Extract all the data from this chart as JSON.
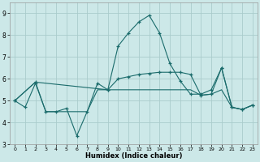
{
  "xlabel": "Humidex (Indice chaleur)",
  "bg_color": "#cce8e8",
  "grid_color": "#aacccc",
  "line_color": "#1a6b6b",
  "xlim": [
    -0.5,
    23.5
  ],
  "ylim": [
    3.0,
    9.5
  ],
  "yticks": [
    3,
    4,
    5,
    6,
    7,
    8,
    9
  ],
  "xticks": [
    0,
    1,
    2,
    3,
    4,
    5,
    6,
    7,
    8,
    9,
    10,
    11,
    12,
    13,
    14,
    15,
    16,
    17,
    18,
    19,
    20,
    21,
    22,
    23
  ],
  "line1_x": [
    0,
    1,
    2,
    3,
    4,
    5,
    6,
    7,
    8,
    9,
    10,
    11,
    12,
    13,
    14,
    15,
    16,
    17,
    18,
    19,
    20,
    21,
    22,
    23
  ],
  "line1_y": [
    5.0,
    4.7,
    5.8,
    4.5,
    4.5,
    4.65,
    3.4,
    4.5,
    5.8,
    5.5,
    7.5,
    8.1,
    8.6,
    8.9,
    8.1,
    6.7,
    5.9,
    5.3,
    5.3,
    5.5,
    6.5,
    4.7,
    4.6,
    4.8
  ],
  "line2_x": [
    0,
    2,
    9,
    10,
    11,
    12,
    13,
    14,
    15,
    16,
    17,
    18,
    19,
    20,
    21,
    22,
    23
  ],
  "line2_y": [
    5.0,
    5.85,
    5.5,
    6.0,
    6.1,
    6.2,
    6.25,
    6.3,
    6.3,
    6.3,
    6.2,
    5.25,
    5.3,
    6.5,
    4.7,
    4.6,
    4.8
  ],
  "line3_x": [
    0,
    2,
    3,
    4,
    5,
    6,
    7,
    8,
    9,
    10,
    11,
    12,
    13,
    14,
    15,
    16,
    17,
    18,
    19,
    20,
    21,
    22,
    23
  ],
  "line3_y": [
    5.0,
    5.85,
    4.5,
    4.5,
    4.5,
    4.5,
    4.5,
    5.5,
    5.5,
    5.5,
    5.5,
    5.5,
    5.5,
    5.5,
    5.5,
    5.5,
    5.5,
    5.25,
    5.3,
    5.5,
    4.7,
    4.6,
    4.8
  ]
}
